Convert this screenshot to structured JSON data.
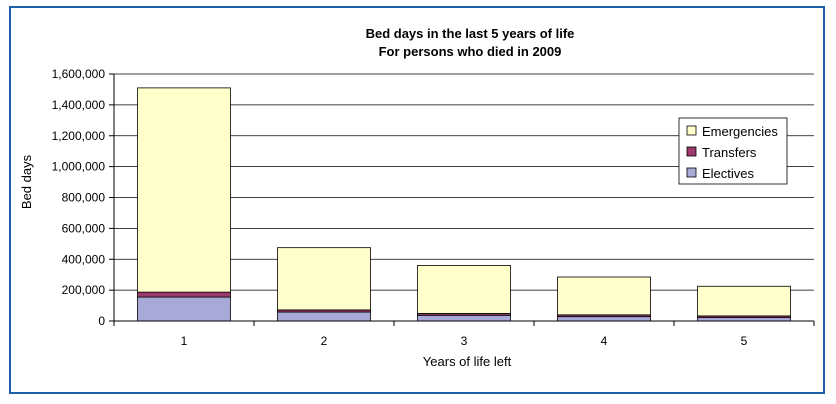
{
  "chart_data": {
    "type": "bar",
    "stacked": true,
    "title": "Bed days in the last 5 years of life",
    "subtitle": "For persons who died in 2009",
    "xlabel": "Years of life left",
    "ylabel": "Bed days",
    "categories": [
      "1",
      "2",
      "3",
      "4",
      "5"
    ],
    "ylim": [
      0,
      1600000
    ],
    "yticks": [
      0,
      200000,
      400000,
      600000,
      800000,
      1000000,
      1200000,
      1400000,
      1600000
    ],
    "ytick_labels": [
      "0",
      "200,000",
      "400,000",
      "600,000",
      "800,000",
      "1,000,000",
      "1,200,000",
      "1,400,000",
      "1,600,000"
    ],
    "grid": true,
    "legend_position": "right",
    "series": [
      {
        "name": "Electives",
        "color": "#a9a9d8",
        "values": [
          155000,
          58000,
          37000,
          28000,
          22000
        ]
      },
      {
        "name": "Transfers",
        "color": "#9b3a6b",
        "values": [
          32000,
          14000,
          12000,
          12000,
          11000
        ]
      },
      {
        "name": "Emergencies",
        "color": "#ffffcc",
        "values": [
          1323000,
          403000,
          311000,
          245000,
          192000
        ]
      }
    ],
    "legend_order": [
      "Emergencies",
      "Transfers",
      "Electives"
    ]
  }
}
